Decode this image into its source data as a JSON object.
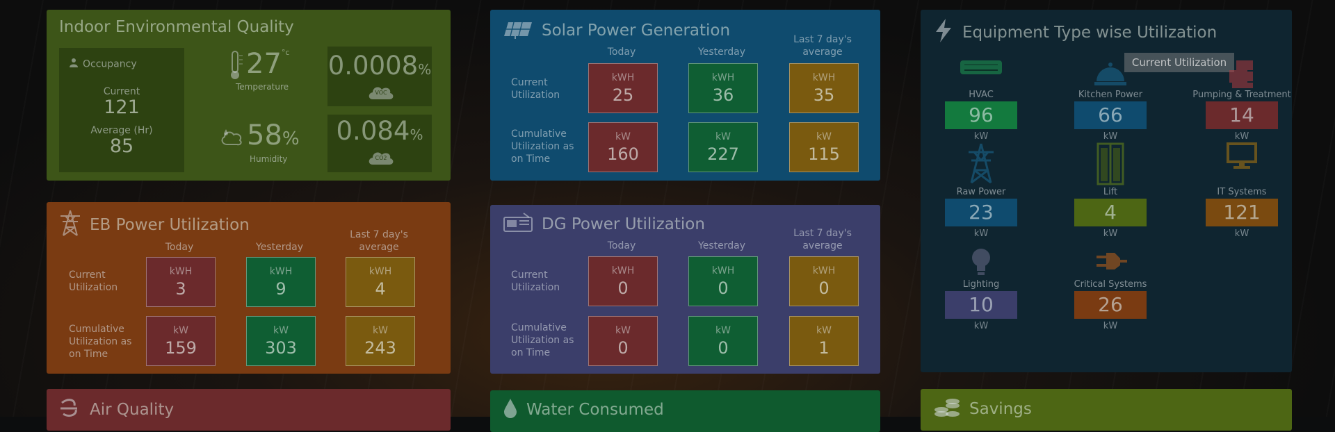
{
  "colors": {
    "ieq": "#3d5518",
    "solar": "#0f4b6e",
    "eb": "#7a3b12",
    "dg": "#3b3e6a",
    "equipment": "#0f2530",
    "air": "#6b2a2c",
    "water": "#0f5a2e",
    "savings": "#4d6614"
  },
  "ieq": {
    "title": "Indoor Environmental Quality",
    "occupancy_label": "Occupancy",
    "current_label": "Current",
    "current_value": "121",
    "average_label": "Average (Hr)",
    "average_value": "85",
    "temperature_value": "27",
    "temperature_unit": "°c",
    "temperature_label": "Temperature",
    "humidity_value": "58",
    "humidity_unit": "%",
    "humidity_label": "Humidity",
    "voc_value": "0.0008",
    "voc_unit": "%",
    "voc_label": "VOC",
    "co2_value": "0.084",
    "co2_unit": "%",
    "co2_label": "CO2"
  },
  "solar": {
    "title": "Solar Power Generation",
    "col_today": "Today",
    "col_yesterday": "Yesterday",
    "col_avg": "Last 7 day's average",
    "row1": "Current Utilization",
    "row2": "Cumulative Utilization as on Time",
    "cells": [
      {
        "unit": "kWH",
        "value": "25"
      },
      {
        "unit": "kWH",
        "value": "36"
      },
      {
        "unit": "kWH",
        "value": "35"
      },
      {
        "unit": "kW",
        "value": "160"
      },
      {
        "unit": "kW",
        "value": "227"
      },
      {
        "unit": "kW",
        "value": "115"
      }
    ]
  },
  "eb": {
    "title": "EB Power Utilization",
    "col_today": "Today",
    "col_yesterday": "Yesterday",
    "col_avg": "Last 7 day's average",
    "row1": "Current Utilization",
    "row2": "Cumulative Utilization as on Time",
    "cells": [
      {
        "unit": "kWH",
        "value": "3"
      },
      {
        "unit": "kWH",
        "value": "9"
      },
      {
        "unit": "kWH",
        "value": "4"
      },
      {
        "unit": "kW",
        "value": "159"
      },
      {
        "unit": "kW",
        "value": "303"
      },
      {
        "unit": "kW",
        "value": "243"
      }
    ]
  },
  "dg": {
    "title": "DG Power Utilization",
    "col_today": "Today",
    "col_yesterday": "Yesterday",
    "col_avg": "Last 7 day's average",
    "row1": "Current Utilization",
    "row2": "Cumulative Utilization as on Time",
    "cells": [
      {
        "unit": "kWH",
        "value": "0"
      },
      {
        "unit": "kWH",
        "value": "0"
      },
      {
        "unit": "kWH",
        "value": "0"
      },
      {
        "unit": "kW",
        "value": "0"
      },
      {
        "unit": "kW",
        "value": "0"
      },
      {
        "unit": "kW",
        "value": "1"
      }
    ]
  },
  "equipment": {
    "title": "Equipment Type wise Utilization",
    "button": "Current Utilization",
    "items": [
      {
        "name": "HVAC",
        "value": "96",
        "unit": "kW",
        "color": "#137a3e",
        "icon": "hvac-icon"
      },
      {
        "name": "Kitchen Power",
        "value": "66",
        "unit": "kW",
        "color": "#0f4b6e",
        "icon": "kitchen-icon"
      },
      {
        "name": "Pumping & Treatment",
        "value": "14",
        "unit": "kW",
        "color": "#6b2a2c",
        "icon": "pump-icon"
      },
      {
        "name": "Raw Power",
        "value": "23",
        "unit": "kW",
        "color": "#0f4b6e",
        "icon": "tower-icon"
      },
      {
        "name": "Lift",
        "value": "4",
        "unit": "kW",
        "color": "#4d6614",
        "icon": "lift-icon"
      },
      {
        "name": "IT Systems",
        "value": "121",
        "unit": "kW",
        "color": "#7a4a10",
        "icon": "monitor-icon"
      },
      {
        "name": "Lighting",
        "value": "10",
        "unit": "kW",
        "color": "#3b3e6a",
        "icon": "bulb-icon"
      },
      {
        "name": "Critical Systems",
        "value": "26",
        "unit": "kW",
        "color": "#7a3b12",
        "icon": "plug-icon"
      }
    ]
  },
  "air": {
    "title": "Air Quality"
  },
  "water": {
    "title": "Water Consumed"
  },
  "savings": {
    "title": "Savings"
  }
}
